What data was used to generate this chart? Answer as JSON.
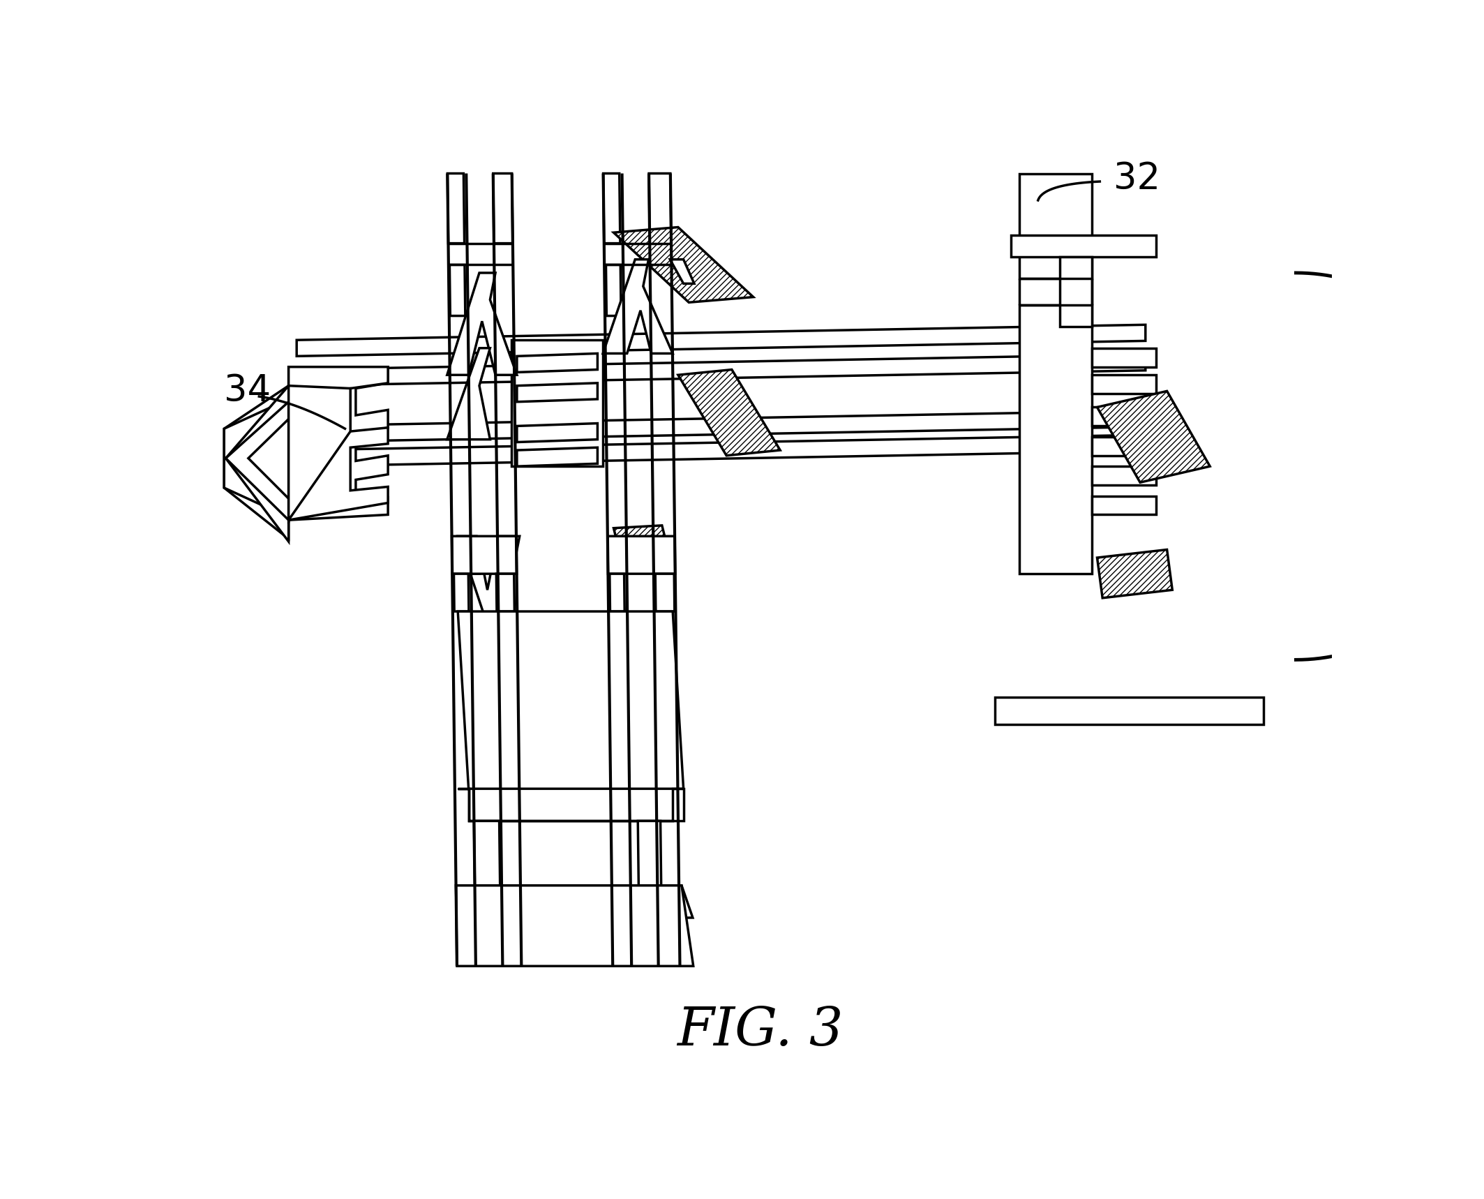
{
  "title": "FIG. 3",
  "label_32": "32",
  "label_34": "34",
  "bg_color": "#ffffff",
  "line_color": "#000000",
  "line_width": 2.5,
  "fig_width": 21.27,
  "fig_height": 17.18,
  "dpi": 100
}
